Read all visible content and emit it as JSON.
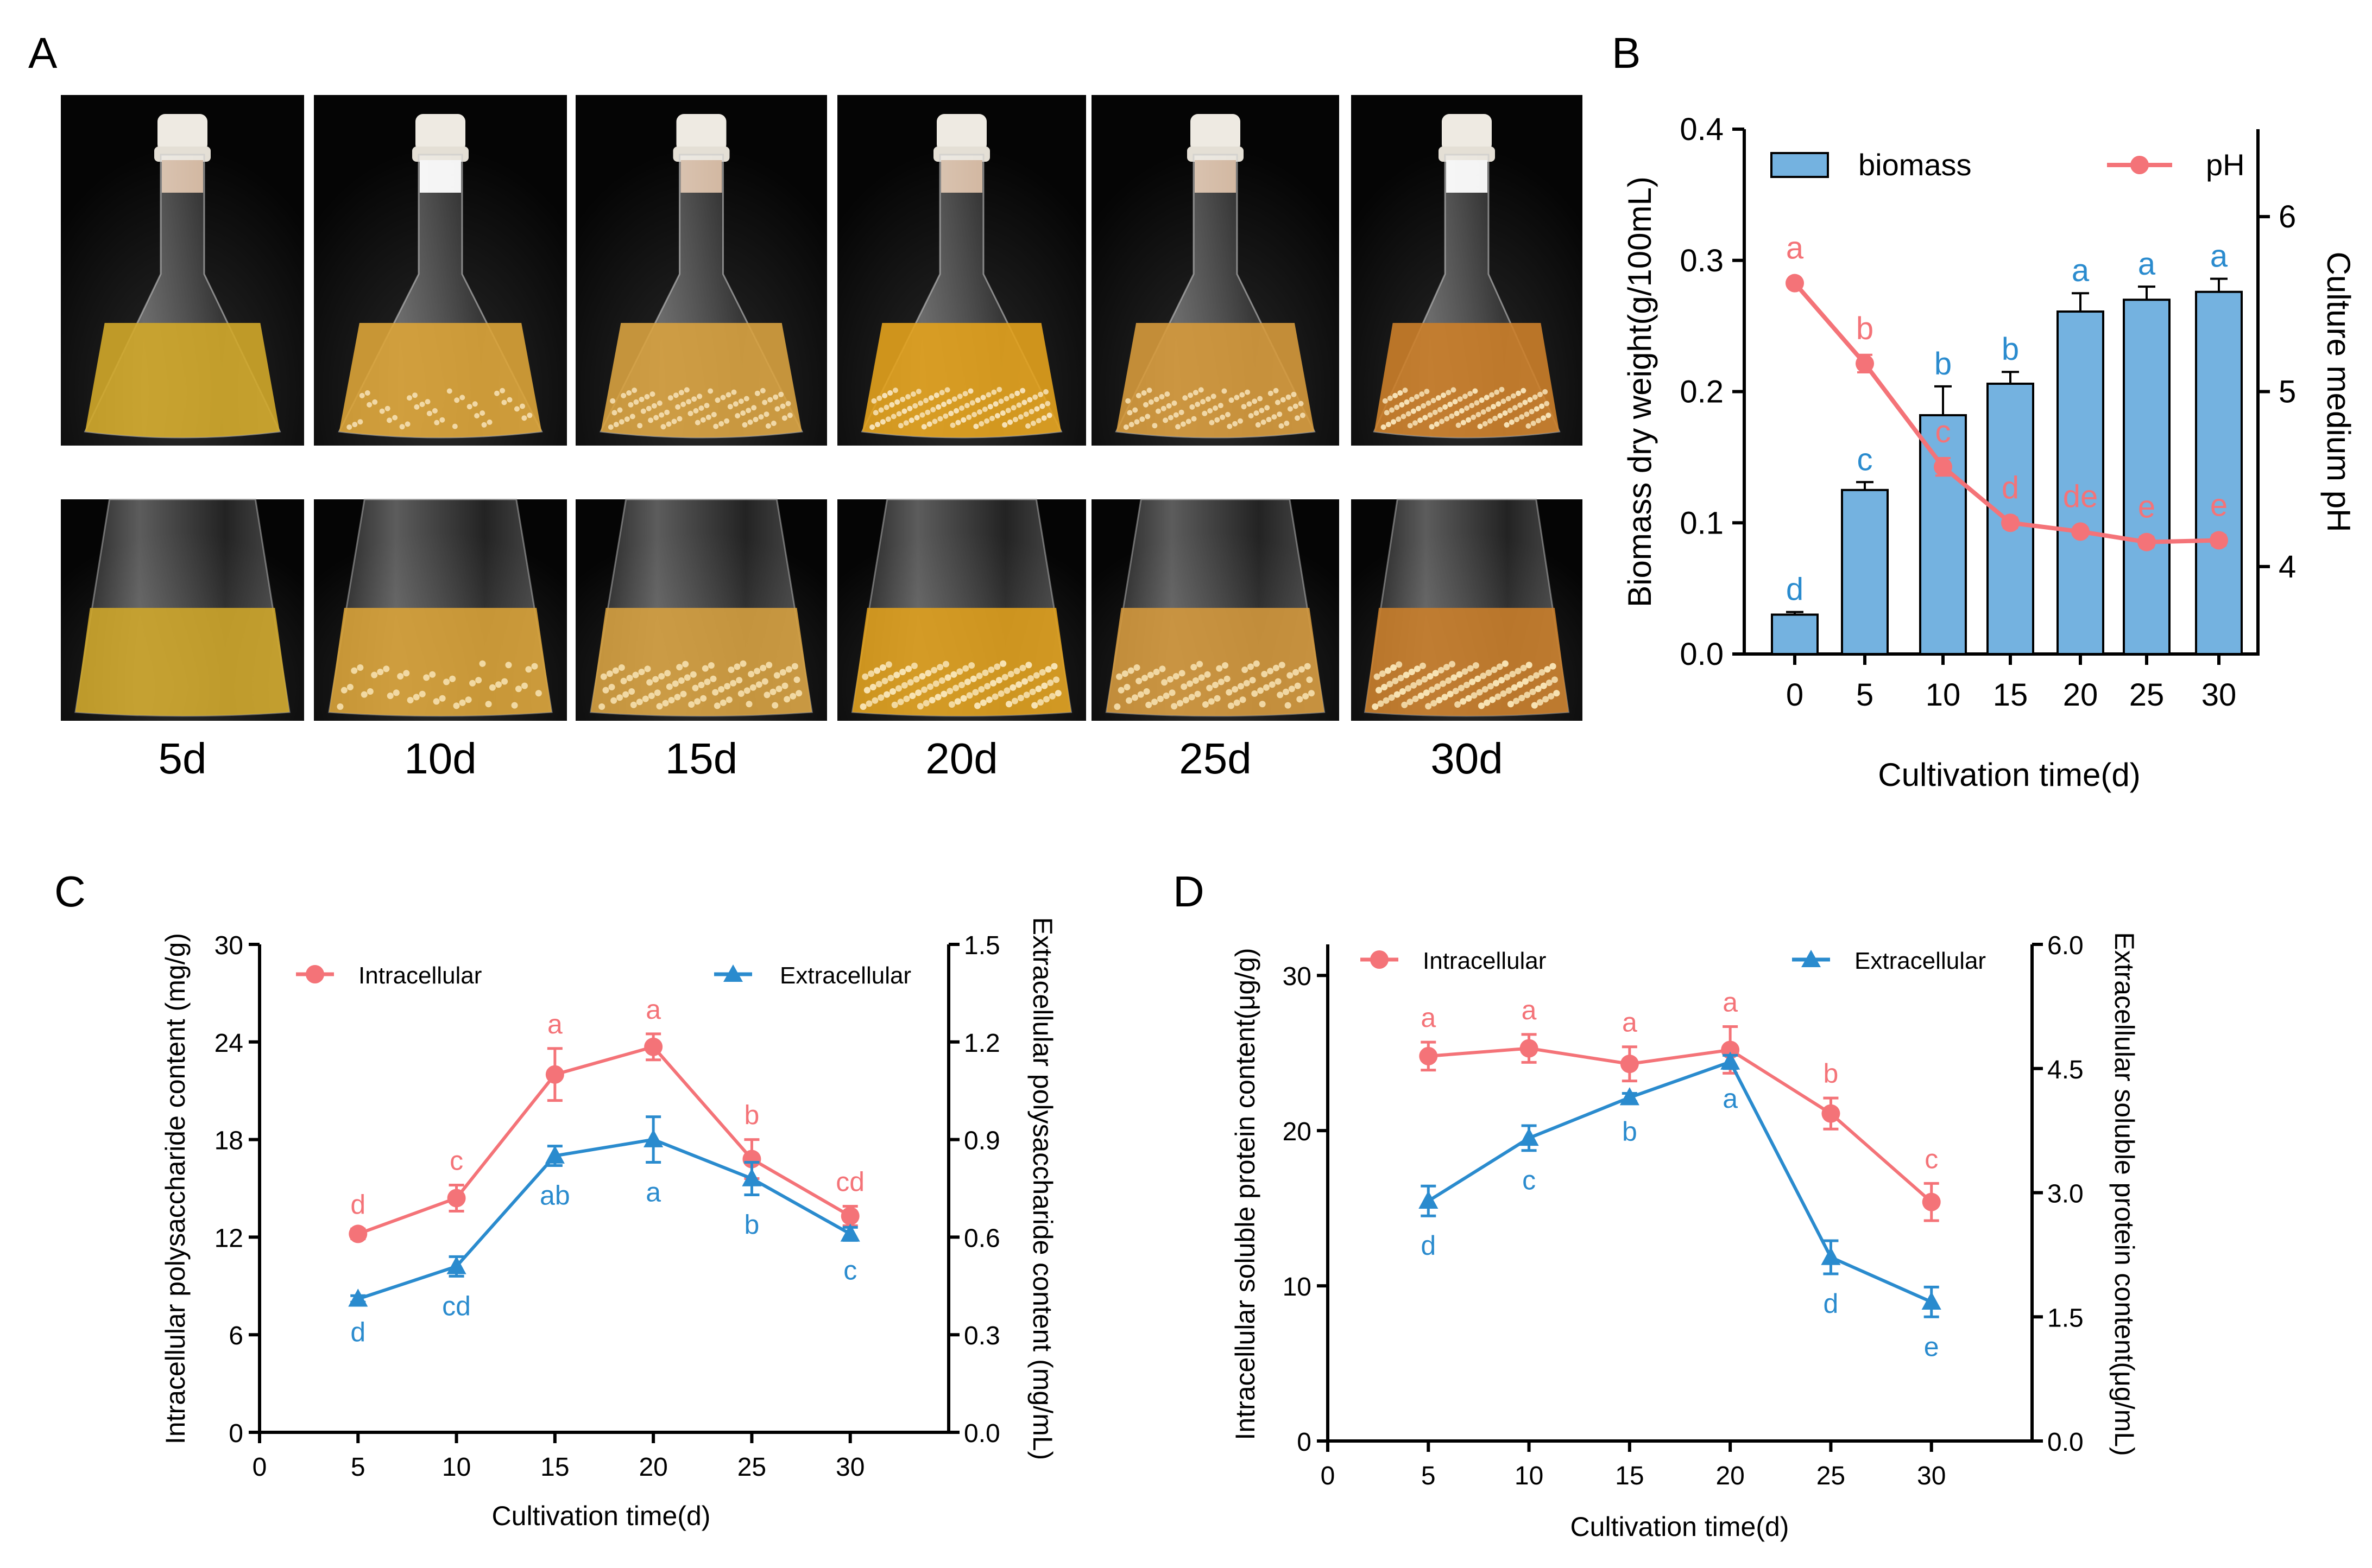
{
  "panels": {
    "a": "A",
    "b": "B",
    "c": "C",
    "d": "D"
  },
  "photos": {
    "days": [
      "5d",
      "10d",
      "15d",
      "20d",
      "25d",
      "30d"
    ],
    "liquid_colors": [
      "#d2a92a",
      "#dca438",
      "#d8a240",
      "#e3a21d",
      "#d69a3c",
      "#cc7f2a"
    ],
    "bead_levels": [
      "none",
      "light",
      "medium",
      "dense",
      "medium",
      "dense"
    ]
  },
  "colors": {
    "red": "#f47378",
    "blue": "#2a8bce",
    "bar_fill": "#74b2e0",
    "axis": "#000000"
  },
  "chart_data": [
    {
      "id": "B",
      "type": "bar+line",
      "xlabel": "Cultivation time(d)",
      "ylabel_left": "Biomass dry weight(g/100mL)",
      "ylabel_right": "Culture medium pH",
      "categories": [
        "0",
        "5",
        "10",
        "15",
        "20",
        "25",
        "30"
      ],
      "ylim_left": [
        0,
        0.4
      ],
      "yticks_left": [
        "0.0",
        "0.1",
        "0.2",
        "0.3",
        "0.4"
      ],
      "ylim_right": [
        3.5,
        6.5
      ],
      "yticks_right": [
        "4",
        "5",
        "6"
      ],
      "legend": {
        "biomass": "biomass",
        "ph": "pH"
      },
      "series": [
        {
          "name": "biomass",
          "axis": "left",
          "values": [
            0.03,
            0.125,
            0.182,
            0.206,
            0.261,
            0.27,
            0.276
          ],
          "errors": [
            0.002,
            0.006,
            0.022,
            0.009,
            0.014,
            0.01,
            0.01
          ],
          "letters": [
            "d",
            "c",
            "b",
            "b",
            "a",
            "a",
            "a"
          ]
        },
        {
          "name": "pH",
          "axis": "right",
          "values": [
            5.62,
            5.16,
            4.57,
            4.25,
            4.2,
            4.14,
            4.15
          ],
          "errors": [
            0.02,
            0.05,
            0.05,
            0.03,
            0.02,
            0.03,
            0.03
          ],
          "letters": [
            "a",
            "b",
            "c",
            "d",
            "de",
            "e",
            "e"
          ]
        }
      ]
    },
    {
      "id": "C",
      "type": "line",
      "xlabel": "Cultivation time(d)",
      "ylabel_left": "Intracellular polysaccharide content (mg/g)",
      "ylabel_right": "Extracellular polysaccharide content (mg/mL)",
      "x": [
        5,
        10,
        15,
        20,
        25,
        30
      ],
      "xticks": [
        "0",
        "5",
        "10",
        "15",
        "20",
        "25",
        "30"
      ],
      "xlim": [
        0,
        35
      ],
      "ylim_left": [
        0,
        30
      ],
      "yticks_left": [
        "0",
        "6",
        "12",
        "18",
        "24",
        "30"
      ],
      "ylim_right": [
        0,
        1.5
      ],
      "yticks_right": [
        "0.0",
        "0.3",
        "0.6",
        "0.9",
        "1.2",
        "1.5"
      ],
      "legend": {
        "intra": "Intracellular",
        "extra": "Extracellular"
      },
      "series": [
        {
          "name": "Intracellular",
          "axis": "left",
          "values": [
            12.2,
            14.4,
            22.0,
            23.7,
            16.8,
            13.3
          ],
          "errors": [
            0.3,
            0.8,
            1.6,
            0.8,
            1.2,
            0.6
          ],
          "letters": [
            "d",
            "c",
            "a",
            "a",
            "b",
            "cd"
          ]
        },
        {
          "name": "Extracellular",
          "axis": "right",
          "values": [
            0.41,
            0.51,
            0.85,
            0.9,
            0.78,
            0.61
          ],
          "errors": [
            0.01,
            0.03,
            0.03,
            0.07,
            0.05,
            0.02
          ],
          "letters": [
            "d",
            "cd",
            "ab",
            "a",
            "b",
            "c"
          ]
        }
      ]
    },
    {
      "id": "D",
      "type": "line",
      "xlabel": "Cultivation time(d)",
      "ylabel_left": "Intracellular soluble protein content(μg/g)",
      "ylabel_right": "Extracellular soluble protein content(μg/mL)",
      "x": [
        5,
        10,
        15,
        20,
        25,
        30
      ],
      "xticks": [
        "0",
        "5",
        "10",
        "15",
        "20",
        "25",
        "30"
      ],
      "xlim": [
        0,
        35
      ],
      "ylim_left": [
        0,
        32
      ],
      "yticks_left": [
        "0",
        "10",
        "20",
        "30"
      ],
      "ylim_right": [
        0,
        6.0
      ],
      "yticks_right": [
        "0.0",
        "1.5",
        "3.0",
        "4.5",
        "6.0"
      ],
      "legend": {
        "intra": "Intracellular",
        "extra": "Extracellular"
      },
      "series": [
        {
          "name": "Intracellular",
          "axis": "left",
          "values": [
            24.8,
            25.3,
            24.3,
            25.2,
            21.1,
            15.4
          ],
          "errors": [
            0.9,
            0.9,
            1.1,
            1.5,
            1.0,
            1.2
          ],
          "letters": [
            "a",
            "a",
            "a",
            "a",
            "b",
            "c"
          ]
        },
        {
          "name": "Extracellular",
          "axis": "right",
          "values": [
            2.9,
            3.66,
            4.15,
            4.58,
            2.22,
            1.68
          ],
          "errors": [
            0.18,
            0.15,
            0.05,
            0.08,
            0.2,
            0.18
          ],
          "letters": [
            "d",
            "c",
            "b",
            "a",
            "d",
            "e"
          ]
        }
      ]
    }
  ]
}
